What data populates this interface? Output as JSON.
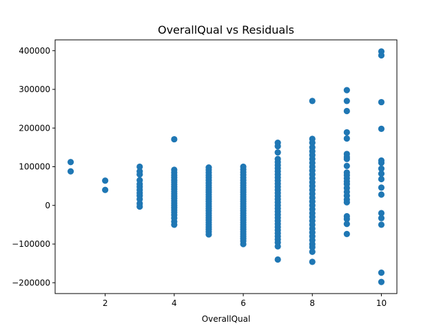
{
  "chart_data": {
    "type": "scatter",
    "title": "OverallQual vs Residuals",
    "xlabel": "OverallQual",
    "ylabel": "",
    "xlim": [
      0.55,
      10.45
    ],
    "ylim": [
      -228000,
      428000
    ],
    "xticks": [
      2,
      4,
      6,
      8,
      10
    ],
    "yticks": [
      -200000,
      -100000,
      0,
      100000,
      200000,
      300000,
      400000
    ],
    "xtick_labels": [
      "2",
      "4",
      "6",
      "8",
      "10"
    ],
    "ytick_labels": [
      "−200000",
      "−100000",
      "0",
      "100000",
      "200000",
      "300000",
      "400000"
    ],
    "grid": false,
    "marker_color": "#1f77b4",
    "series": [
      {
        "points": [
          [
            1,
            112000
          ],
          [
            1,
            88000
          ],
          [
            2,
            64000
          ],
          [
            2,
            40000
          ],
          [
            3,
            100000
          ],
          [
            3,
            88000
          ],
          [
            3,
            80000
          ],
          [
            3,
            65000
          ],
          [
            3,
            55000
          ],
          [
            3,
            48000
          ],
          [
            3,
            40000
          ],
          [
            3,
            32000
          ],
          [
            3,
            25000
          ],
          [
            3,
            16000
          ],
          [
            3,
            5000
          ],
          [
            3,
            -3000
          ],
          [
            4,
            171000
          ],
          [
            4,
            92000
          ],
          [
            4,
            85000
          ],
          [
            4,
            78000
          ],
          [
            4,
            72000
          ],
          [
            4,
            65000
          ],
          [
            4,
            60000
          ],
          [
            4,
            54000
          ],
          [
            4,
            48000
          ],
          [
            4,
            42000
          ],
          [
            4,
            36000
          ],
          [
            4,
            30000
          ],
          [
            4,
            24000
          ],
          [
            4,
            18000
          ],
          [
            4,
            12000
          ],
          [
            4,
            6000
          ],
          [
            4,
            0
          ],
          [
            4,
            -6000
          ],
          [
            4,
            -12000
          ],
          [
            4,
            -18000
          ],
          [
            4,
            -25000
          ],
          [
            4,
            -33000
          ],
          [
            4,
            -42000
          ],
          [
            4,
            -50000
          ],
          [
            5,
            98000
          ],
          [
            5,
            92000
          ],
          [
            5,
            85000
          ],
          [
            5,
            78000
          ],
          [
            5,
            72000
          ],
          [
            5,
            65000
          ],
          [
            5,
            58000
          ],
          [
            5,
            52000
          ],
          [
            5,
            46000
          ],
          [
            5,
            40000
          ],
          [
            5,
            34000
          ],
          [
            5,
            28000
          ],
          [
            5,
            22000
          ],
          [
            5,
            16000
          ],
          [
            5,
            10000
          ],
          [
            5,
            4000
          ],
          [
            5,
            -2000
          ],
          [
            5,
            -8000
          ],
          [
            5,
            -14000
          ],
          [
            5,
            -20000
          ],
          [
            5,
            -26000
          ],
          [
            5,
            -32000
          ],
          [
            5,
            -38000
          ],
          [
            5,
            -44000
          ],
          [
            5,
            -50000
          ],
          [
            5,
            -56000
          ],
          [
            5,
            -62000
          ],
          [
            5,
            -68000
          ],
          [
            5,
            -75000
          ],
          [
            6,
            100000
          ],
          [
            6,
            93000
          ],
          [
            6,
            86000
          ],
          [
            6,
            79000
          ],
          [
            6,
            72000
          ],
          [
            6,
            65000
          ],
          [
            6,
            58000
          ],
          [
            6,
            52000
          ],
          [
            6,
            46000
          ],
          [
            6,
            40000
          ],
          [
            6,
            34000
          ],
          [
            6,
            28000
          ],
          [
            6,
            22000
          ],
          [
            6,
            16000
          ],
          [
            6,
            10000
          ],
          [
            6,
            4000
          ],
          [
            6,
            -2000
          ],
          [
            6,
            -8000
          ],
          [
            6,
            -14000
          ],
          [
            6,
            -20000
          ],
          [
            6,
            -26000
          ],
          [
            6,
            -32000
          ],
          [
            6,
            -38000
          ],
          [
            6,
            -44000
          ],
          [
            6,
            -50000
          ],
          [
            6,
            -56000
          ],
          [
            6,
            -62000
          ],
          [
            6,
            -68000
          ],
          [
            6,
            -74000
          ],
          [
            6,
            -80000
          ],
          [
            6,
            -86000
          ],
          [
            6,
            -92000
          ],
          [
            6,
            -100000
          ],
          [
            7,
            162000
          ],
          [
            7,
            153000
          ],
          [
            7,
            137000
          ],
          [
            7,
            120000
          ],
          [
            7,
            112000
          ],
          [
            7,
            104000
          ],
          [
            7,
            96000
          ],
          [
            7,
            88000
          ],
          [
            7,
            80000
          ],
          [
            7,
            72000
          ],
          [
            7,
            64000
          ],
          [
            7,
            56000
          ],
          [
            7,
            48000
          ],
          [
            7,
            40000
          ],
          [
            7,
            32000
          ],
          [
            7,
            24000
          ],
          [
            7,
            16000
          ],
          [
            7,
            8000
          ],
          [
            7,
            0
          ],
          [
            7,
            -8000
          ],
          [
            7,
            -16000
          ],
          [
            7,
            -24000
          ],
          [
            7,
            -32000
          ],
          [
            7,
            -40000
          ],
          [
            7,
            -48000
          ],
          [
            7,
            -56000
          ],
          [
            7,
            -64000
          ],
          [
            7,
            -72000
          ],
          [
            7,
            -80000
          ],
          [
            7,
            -88000
          ],
          [
            7,
            -96000
          ],
          [
            7,
            -106000
          ],
          [
            7,
            -140000
          ],
          [
            8,
            270000
          ],
          [
            8,
            172000
          ],
          [
            8,
            162000
          ],
          [
            8,
            150000
          ],
          [
            8,
            140000
          ],
          [
            8,
            130000
          ],
          [
            8,
            120000
          ],
          [
            8,
            110000
          ],
          [
            8,
            100000
          ],
          [
            8,
            90000
          ],
          [
            8,
            80000
          ],
          [
            8,
            70000
          ],
          [
            8,
            60000
          ],
          [
            8,
            50000
          ],
          [
            8,
            40000
          ],
          [
            8,
            30000
          ],
          [
            8,
            20000
          ],
          [
            8,
            10000
          ],
          [
            8,
            0
          ],
          [
            8,
            -10000
          ],
          [
            8,
            -20000
          ],
          [
            8,
            -30000
          ],
          [
            8,
            -40000
          ],
          [
            8,
            -50000
          ],
          [
            8,
            -60000
          ],
          [
            8,
            -70000
          ],
          [
            8,
            -80000
          ],
          [
            8,
            -90000
          ],
          [
            8,
            -100000
          ],
          [
            8,
            -108000
          ],
          [
            8,
            -120000
          ],
          [
            8,
            -146000
          ],
          [
            9,
            298000
          ],
          [
            9,
            270000
          ],
          [
            9,
            244000
          ],
          [
            9,
            189000
          ],
          [
            9,
            173000
          ],
          [
            9,
            133000
          ],
          [
            9,
            125000
          ],
          [
            9,
            120000
          ],
          [
            9,
            102000
          ],
          [
            9,
            85000
          ],
          [
            9,
            78000
          ],
          [
            9,
            70000
          ],
          [
            9,
            62000
          ],
          [
            9,
            55000
          ],
          [
            9,
            45000
          ],
          [
            9,
            35000
          ],
          [
            9,
            25000
          ],
          [
            9,
            15000
          ],
          [
            9,
            8000
          ],
          [
            9,
            -28000
          ],
          [
            9,
            -35000
          ],
          [
            9,
            -48000
          ],
          [
            9,
            -74000
          ],
          [
            10,
            398000
          ],
          [
            10,
            388000
          ],
          [
            10,
            267000
          ],
          [
            10,
            198000
          ],
          [
            10,
            116000
          ],
          [
            10,
            110000
          ],
          [
            10,
            95000
          ],
          [
            10,
            82000
          ],
          [
            10,
            68000
          ],
          [
            10,
            46000
          ],
          [
            10,
            28000
          ],
          [
            10,
            -20000
          ],
          [
            10,
            -33000
          ],
          [
            10,
            -50000
          ],
          [
            10,
            -174000
          ],
          [
            10,
            -198000
          ]
        ]
      }
    ]
  }
}
